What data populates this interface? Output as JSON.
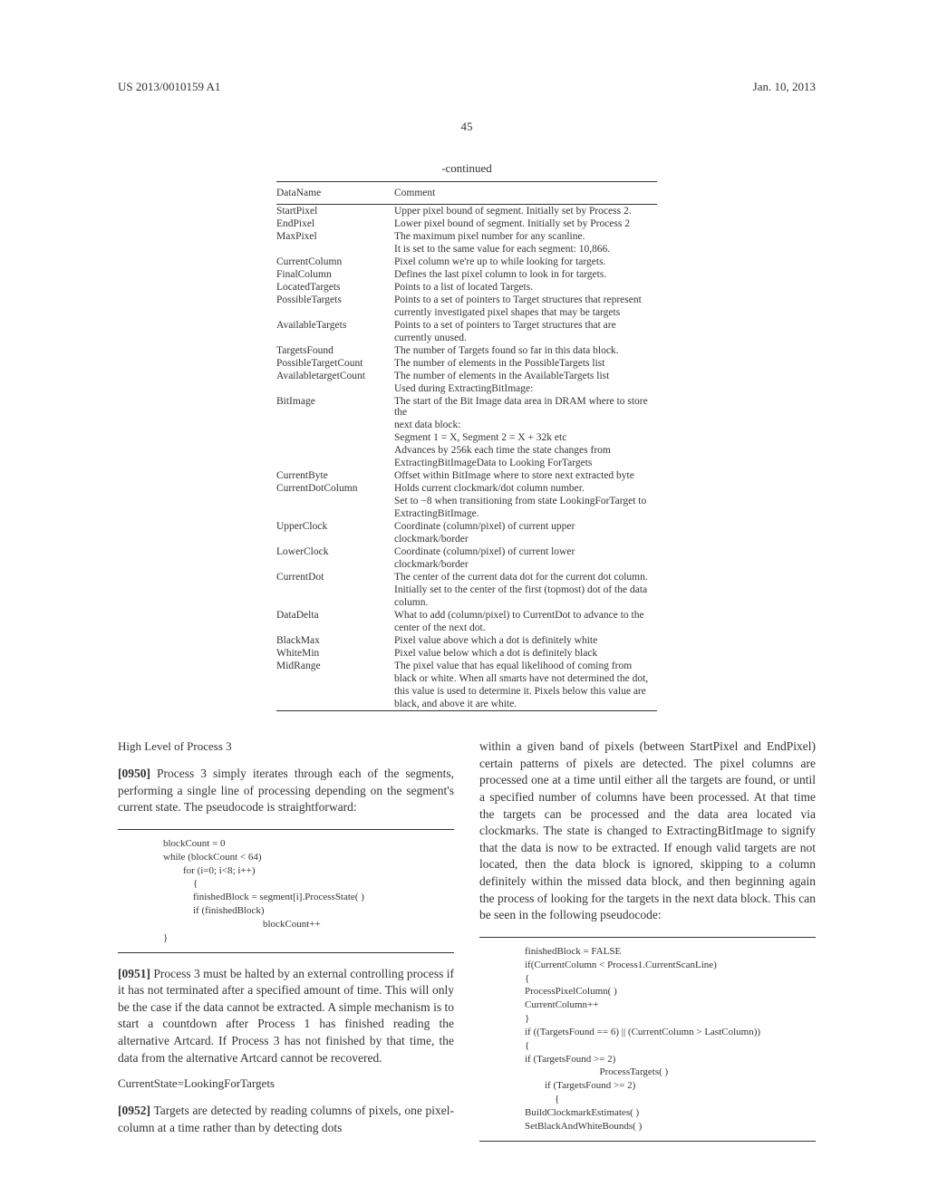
{
  "header": {
    "left": "US 2013/0010159 A1",
    "right": "Jan. 10, 2013"
  },
  "page_number": "45",
  "table": {
    "continued": "-continued",
    "col1": "DataName",
    "col2": "Comment",
    "rows": [
      {
        "n": "StartPixel",
        "c": "Upper pixel bound of segment. Initially set by Process 2."
      },
      {
        "n": "EndPixel",
        "c": "Lower pixel bound of segment. Initially set by Process 2"
      },
      {
        "n": "MaxPixel",
        "c": "The maximum pixel number for any scanline."
      },
      {
        "n": "",
        "c": "It is set to the same value for each segment: 10,866."
      },
      {
        "n": "CurrentColumn",
        "c": "Pixel column we're up to while looking for targets."
      },
      {
        "n": "FinalColumn",
        "c": "Defines the last pixel column to look in for targets."
      },
      {
        "n": "LocatedTargets",
        "c": "Points to a list of located Targets."
      },
      {
        "n": "PossibleTargets",
        "c": "Points to a set of pointers to Target structures that represent"
      },
      {
        "n": "",
        "c": "currently investigated pixel shapes that may be targets"
      },
      {
        "n": "AvailableTargets",
        "c": "Points to a set of pointers to Target structures that are"
      },
      {
        "n": "",
        "c": "currently unused."
      },
      {
        "n": "TargetsFound",
        "c": "The number of Targets found so far in this data block."
      },
      {
        "n": "PossibleTargetCount",
        "c": "The number of elements in the PossibleTargets list"
      },
      {
        "n": "AvailabletargetCount",
        "c": "The number of elements in the AvailableTargets list"
      },
      {
        "n": "",
        "c": "Used during ExtractingBitImage:"
      },
      {
        "n": "BitImage",
        "c": "The start of the Bit Image data area in DRAM where to store the"
      },
      {
        "n": "",
        "c": "next data block:"
      },
      {
        "n": "",
        "c": "Segment 1 = X, Segment 2 = X + 32k etc"
      },
      {
        "n": "",
        "c": "Advances by 256k each time the state changes from"
      },
      {
        "n": "",
        "c": "ExtractingBitImageData to Looking ForTargets"
      },
      {
        "n": "CurrentByte",
        "c": "Offset within BitImage where to store next extracted byte"
      },
      {
        "n": "CurrentDotColumn",
        "c": "Holds current clockmark/dot column number."
      },
      {
        "n": "",
        "c": "Set to −8 when transitioning from state LookingForTarget to"
      },
      {
        "n": "",
        "c": "ExtractingBitImage."
      },
      {
        "n": "UpperClock",
        "c": "Coordinate (column/pixel) of current upper"
      },
      {
        "n": "",
        "c": "clockmark/border"
      },
      {
        "n": "LowerClock",
        "c": "Coordinate (column/pixel) of current lower"
      },
      {
        "n": "",
        "c": "clockmark/border"
      },
      {
        "n": "CurrentDot",
        "c": "The center of the current data dot for the current dot column."
      },
      {
        "n": "",
        "c": "Initially set to the center of the first (topmost) dot of the data"
      },
      {
        "n": "",
        "c": "column."
      },
      {
        "n": "DataDelta",
        "c": "What to add (column/pixel) to CurrentDot to advance to the"
      },
      {
        "n": "",
        "c": "center of the next dot."
      },
      {
        "n": "BlackMax",
        "c": "Pixel value above which a dot is definitely white"
      },
      {
        "n": "WhiteMin",
        "c": "Pixel value below which a dot is definitely black"
      },
      {
        "n": "MidRange",
        "c": "The pixel value that has equal likelihood of coming from"
      },
      {
        "n": "",
        "c": "black or white. When all smarts have not determined the dot,"
      },
      {
        "n": "",
        "c": "this value is used to determine it. Pixels below this value are"
      },
      {
        "n": "",
        "c": "black, and above it are white."
      }
    ]
  },
  "left_col": {
    "heading1": "High Level of Process 3",
    "p0950_num": "[0950]",
    "p0950": "    Process 3 simply iterates through each of the segments, performing a single line of processing depending on the segment's current state. The pseudocode is straightforward:",
    "code1": "blockCount = 0\nwhile (blockCount < 64)\n        for (i=0; i<8; i++)\n            {\n            finishedBlock = segment[i].ProcessState( )\n            if (finishedBlock)\n                                        blockCount++\n}",
    "p0951_num": "[0951]",
    "p0951": "    Process 3 must be halted by an external controlling process if it has not terminated after a specified amount of time. This will only be the case if the data cannot be extracted. A simple mechanism is to start a countdown after Process 1 has finished reading the alternative Artcard. If Process 3 has not finished by that time, the data from the alternative Artcard cannot be recovered.",
    "heading2": "CurrentState=LookingForTargets",
    "p0952_num": "[0952]",
    "p0952": "    Targets are detected by reading columns of pixels, one pixel-column at a time rather than by detecting dots"
  },
  "right_col": {
    "p_cont": "within a given band of pixels (between StartPixel and EndPixel) certain patterns of pixels are detected. The pixel columns are processed one at a time until either all the targets are found, or until a specified number of columns have been processed. At that time the targets can be processed and the data area located via clockmarks. The state is changed to ExtractingBitImage to signify that the data is now to be extracted. If enough valid targets are not located, then the data block is ignored, skipping to a column definitely within the missed data block, and then beginning again the process of looking for the targets in the next data block. This can be seen in the following pseudocode:",
    "code2": "finishedBlock = FALSE\nif(CurrentColumn < Process1.CurrentScanLine)\n{\nProcessPixelColumn( )\nCurrentColumn++\n}\nif ((TargetsFound == 6) || (CurrentColumn > LastColumn))\n{\nif (TargetsFound >= 2)\n                              ProcessTargets( )\n        if (TargetsFound >= 2)\n            {\nBuildClockmarkEstimates( )\nSetBlackAndWhiteBounds( )"
  }
}
